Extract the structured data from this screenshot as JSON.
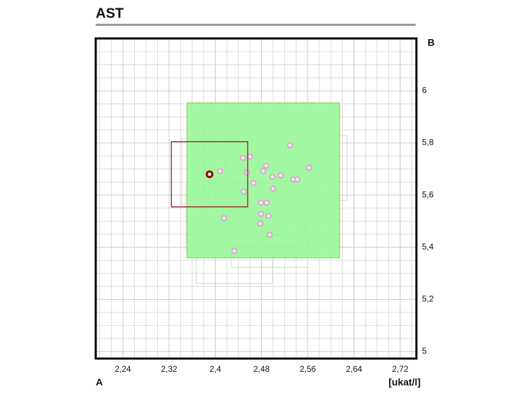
{
  "chart_data": {
    "type": "scatter",
    "title": "AST",
    "x_label": "A",
    "y_label": "B",
    "unit_label": "[ukat/l]",
    "xlim": [
      2.193,
      2.748
    ],
    "ylim": [
      4.973,
      6.201
    ],
    "xticks": [
      {
        "value": 2.24,
        "label": "2,24"
      },
      {
        "value": 2.32,
        "label": "2,32"
      },
      {
        "value": 2.4,
        "label": "2,4"
      },
      {
        "value": 2.48,
        "label": "2,48"
      },
      {
        "value": 2.56,
        "label": "2,56"
      },
      {
        "value": 2.64,
        "label": "2,64"
      },
      {
        "value": 2.72,
        "label": "2,72"
      }
    ],
    "yticks": [
      5,
      {
        "value": 5.2,
        "label": "5,2"
      },
      {
        "value": 5.4,
        "label": "5,4"
      },
      {
        "value": 5.6,
        "label": "5,6"
      },
      {
        "value": 5.8,
        "label": "5,8"
      },
      6
    ],
    "grid": true,
    "target_box": {
      "x": [
        2.351,
        2.615
      ],
      "y": [
        5.359,
        5.954
      ],
      "color": "#99f899"
    },
    "box_half_width": 0.066,
    "box_half_height": 0.125,
    "series": [
      {
        "color": "#d8a8cc",
        "box_color": "#d6d6d6",
        "x": [
          2.408,
          2.448,
          2.46,
          2.455,
          2.466,
          2.449,
          2.488,
          2.483,
          2.499,
          2.513,
          2.5,
          2.529,
          2.562,
          2.535,
          2.542,
          2.479,
          2.489,
          2.479,
          2.492,
          2.478,
          2.415,
          2.494,
          2.433
        ],
        "values": [
          5.692,
          5.743,
          5.748,
          5.686,
          5.646,
          5.614,
          5.713,
          5.692,
          5.67,
          5.676,
          5.625,
          5.791,
          5.705,
          5.66,
          5.66,
          5.571,
          5.571,
          5.528,
          5.52,
          5.491,
          5.512,
          5.448,
          5.386
        ]
      },
      {
        "color": "#8b0000",
        "box_color": "#a0303a",
        "x": [
          2.39
        ],
        "values": [
          5.68
        ]
      }
    ]
  }
}
